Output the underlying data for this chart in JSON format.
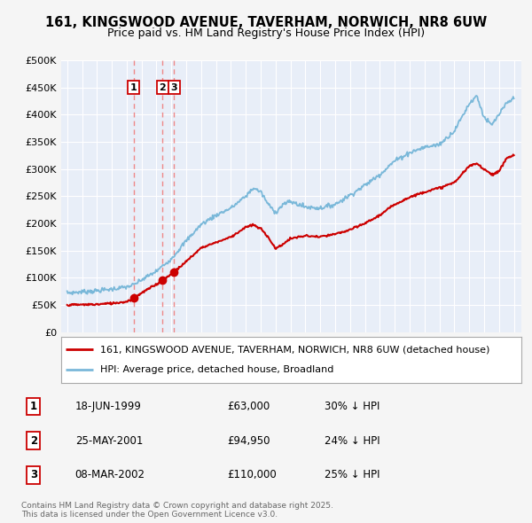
{
  "title": "161, KINGSWOOD AVENUE, TAVERHAM, NORWICH, NR8 6UW",
  "subtitle": "Price paid vs. HM Land Registry's House Price Index (HPI)",
  "hpi_legend": "HPI: Average price, detached house, Broadland",
  "price_legend": "161, KINGSWOOD AVENUE, TAVERHAM, NORWICH, NR8 6UW (detached house)",
  "ylabel_ticks": [
    "£0",
    "£50K",
    "£100K",
    "£150K",
    "£200K",
    "£250K",
    "£300K",
    "£350K",
    "£400K",
    "£450K",
    "£500K"
  ],
  "ytick_values": [
    0,
    50000,
    100000,
    150000,
    200000,
    250000,
    300000,
    350000,
    400000,
    450000,
    500000
  ],
  "hpi_color": "#7ab8d9",
  "price_color": "#cc0000",
  "vline_color": "#ee8888",
  "background_color": "#f5f5f5",
  "plot_bg_color": "#e8eef8",
  "grid_color": "#ffffff",
  "sales": [
    {
      "num": 1,
      "date_str": "18-JUN-1999",
      "date_x": 1999.46,
      "price": 63000,
      "note": "30% ↓ HPI"
    },
    {
      "num": 2,
      "date_str": "25-MAY-2001",
      "date_x": 2001.4,
      "price": 94950,
      "note": "24% ↓ HPI"
    },
    {
      "num": 3,
      "date_str": "08-MAR-2002",
      "date_x": 2002.18,
      "price": 110000,
      "note": "25% ↓ HPI"
    }
  ],
  "footer": "Contains HM Land Registry data © Crown copyright and database right 2025.\nThis data is licensed under the Open Government Licence v3.0.",
  "xmin": 1994.6,
  "xmax": 2025.5,
  "ymin": 0,
  "ymax": 500000,
  "hpi_anchors": [
    [
      1995.0,
      72000
    ],
    [
      1996.0,
      74000
    ],
    [
      1997.0,
      76000
    ],
    [
      1998.0,
      79000
    ],
    [
      1999.0,
      83000
    ],
    [
      1999.5,
      87000
    ],
    [
      2000.0,
      96000
    ],
    [
      2001.0,
      112000
    ],
    [
      2002.0,
      135000
    ],
    [
      2003.0,
      168000
    ],
    [
      2004.0,
      198000
    ],
    [
      2005.0,
      215000
    ],
    [
      2006.0,
      228000
    ],
    [
      2007.0,
      250000
    ],
    [
      2007.5,
      265000
    ],
    [
      2008.0,
      258000
    ],
    [
      2008.5,
      235000
    ],
    [
      2009.0,
      220000
    ],
    [
      2009.5,
      235000
    ],
    [
      2010.0,
      240000
    ],
    [
      2010.5,
      235000
    ],
    [
      2011.0,
      230000
    ],
    [
      2012.0,
      228000
    ],
    [
      2013.0,
      235000
    ],
    [
      2014.0,
      252000
    ],
    [
      2015.0,
      270000
    ],
    [
      2016.0,
      290000
    ],
    [
      2017.0,
      315000
    ],
    [
      2018.0,
      330000
    ],
    [
      2019.0,
      340000
    ],
    [
      2020.0,
      345000
    ],
    [
      2021.0,
      370000
    ],
    [
      2022.0,
      420000
    ],
    [
      2022.5,
      435000
    ],
    [
      2023.0,
      395000
    ],
    [
      2023.5,
      380000
    ],
    [
      2024.0,
      400000
    ],
    [
      2024.5,
      420000
    ],
    [
      2025.0,
      430000
    ]
  ],
  "price_anchors": [
    [
      1995.0,
      50000
    ],
    [
      1996.0,
      50500
    ],
    [
      1997.0,
      51000
    ],
    [
      1998.0,
      53000
    ],
    [
      1999.0,
      56000
    ],
    [
      1999.46,
      63000
    ],
    [
      2000.0,
      72000
    ],
    [
      2001.0,
      88000
    ],
    [
      2001.4,
      94950
    ],
    [
      2002.18,
      110000
    ],
    [
      2003.0,
      130000
    ],
    [
      2004.0,
      155000
    ],
    [
      2005.0,
      165000
    ],
    [
      2006.0,
      175000
    ],
    [
      2007.0,
      193000
    ],
    [
      2007.5,
      197000
    ],
    [
      2008.0,
      190000
    ],
    [
      2008.5,
      175000
    ],
    [
      2009.0,
      153000
    ],
    [
      2009.5,
      162000
    ],
    [
      2010.0,
      172000
    ],
    [
      2011.0,
      177000
    ],
    [
      2012.0,
      175000
    ],
    [
      2013.0,
      180000
    ],
    [
      2014.0,
      188000
    ],
    [
      2015.0,
      200000
    ],
    [
      2016.0,
      215000
    ],
    [
      2017.0,
      235000
    ],
    [
      2018.0,
      248000
    ],
    [
      2019.0,
      258000
    ],
    [
      2020.0,
      265000
    ],
    [
      2021.0,
      275000
    ],
    [
      2022.0,
      305000
    ],
    [
      2022.5,
      310000
    ],
    [
      2023.0,
      300000
    ],
    [
      2023.5,
      290000
    ],
    [
      2024.0,
      295000
    ],
    [
      2024.5,
      320000
    ],
    [
      2025.0,
      325000
    ]
  ]
}
